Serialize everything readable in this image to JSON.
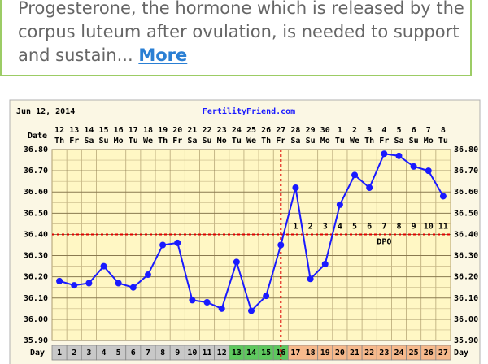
{
  "article": {
    "text_lines": [
      "Progesterone, the hormone which is released by the",
      "corpus luteum after ovulation, is needed to support",
      "and sustain..."
    ],
    "more": "More"
  },
  "chart_data": {
    "type": "line",
    "title": "FertilityFriend.com",
    "date": "Jun 12, 2014",
    "x_label": "Date",
    "day_label": "Day",
    "dates": [
      "12",
      "13",
      "14",
      "15",
      "16",
      "17",
      "18",
      "19",
      "20",
      "21",
      "22",
      "23",
      "24",
      "25",
      "26",
      "27",
      "28",
      "29",
      "30",
      "1",
      "2",
      "3",
      "4",
      "5",
      "6",
      "7",
      "8"
    ],
    "weekdays": [
      "Th",
      "Fr",
      "Sa",
      "Su",
      "Mo",
      "Tu",
      "We",
      "Th",
      "Fr",
      "Sa",
      "Su",
      "Mo",
      "Tu",
      "We",
      "Th",
      "Fr",
      "Sa",
      "Su",
      "Mo",
      "Tu",
      "We",
      "Th",
      "Fr",
      "Sa",
      "Su",
      "Mo",
      "Tu"
    ],
    "cycle_days": [
      1,
      2,
      3,
      4,
      5,
      6,
      7,
      8,
      9,
      10,
      11,
      12,
      13,
      14,
      15,
      16,
      17,
      18,
      19,
      20,
      21,
      22,
      23,
      24,
      25,
      26,
      27
    ],
    "day_colors": [
      {
        "through": 12,
        "color": "#c8c8c8"
      },
      {
        "through": 16,
        "color": "#5ec85e"
      },
      {
        "through": 27,
        "color": "#f6b98c"
      }
    ],
    "series": [
      {
        "color": "#1a1aff",
        "values": [
          36.18,
          36.16,
          36.17,
          36.25,
          36.17,
          36.15,
          36.21,
          36.35,
          36.36,
          36.09,
          36.08,
          36.05,
          36.27,
          36.04,
          36.11,
          36.35,
          36.62,
          36.19,
          36.26,
          36.54,
          36.68,
          36.62,
          36.78,
          36.77,
          36.72,
          36.7,
          36.58
        ]
      }
    ],
    "ylim": [
      35.9,
      36.8
    ],
    "yticks": [
      {
        "value": 35.9,
        "label": "35.90"
      },
      {
        "value": 36.0,
        "label": "36.00"
      },
      {
        "value": 36.1,
        "label": "36.10"
      },
      {
        "value": 36.2,
        "label": "36.20"
      },
      {
        "value": 36.3,
        "label": "36.30"
      },
      {
        "value": 36.4,
        "label": "36.40"
      },
      {
        "value": 36.5,
        "label": "36.50"
      },
      {
        "value": 36.6,
        "label": "36.60"
      },
      {
        "value": 36.7,
        "label": "36.70"
      },
      {
        "value": 36.8,
        "label": "36.80"
      }
    ],
    "coverline": 36.4,
    "ovulation_day": 16,
    "marker_color": "#e00000",
    "dpo": [
      1,
      2,
      3,
      4,
      5,
      6,
      7,
      8,
      9,
      10,
      11
    ],
    "dpo_label": "DPO",
    "grid": true
  }
}
